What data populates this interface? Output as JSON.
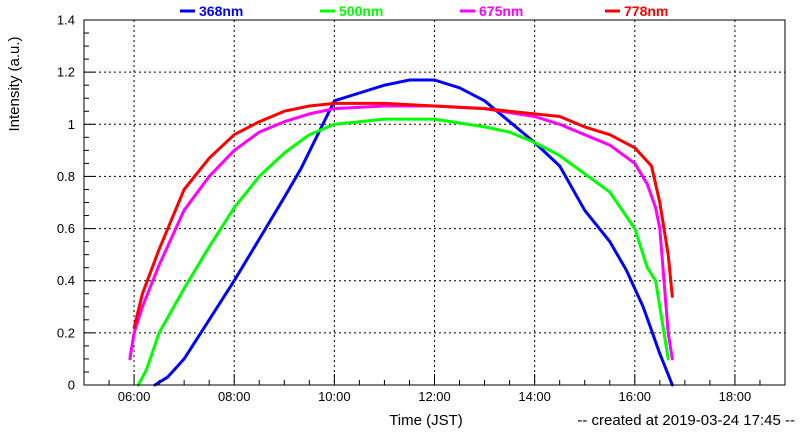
{
  "chart_data": {
    "type": "line",
    "title": "",
    "xlabel": "Time (JST)",
    "ylabel": "Intensity (a.u.)",
    "xlim": [
      "05:00",
      "19:00"
    ],
    "ylim": [
      0,
      1.4
    ],
    "xticks": [
      "06:00",
      "08:00",
      "10:00",
      "12:00",
      "14:00",
      "16:00",
      "18:00"
    ],
    "yticks": [
      "0",
      "0.2",
      "0.4",
      "0.6",
      "0.8",
      "1",
      "1.2",
      "1.4"
    ],
    "grid": true,
    "legend": "top",
    "footnote": "-- created at 2019-03-24 17:45 --",
    "series": [
      {
        "name": "368nm",
        "color": "#0000ff",
        "points": [
          [
            "06:25",
            0.0
          ],
          [
            "06:40",
            0.03
          ],
          [
            "07:00",
            0.1
          ],
          [
            "07:30",
            0.25
          ],
          [
            "08:00",
            0.4
          ],
          [
            "08:30",
            0.56
          ],
          [
            "09:00",
            0.72
          ],
          [
            "09:20",
            0.83
          ],
          [
            "09:40",
            0.96
          ],
          [
            "10:00",
            1.09
          ],
          [
            "10:30",
            1.12
          ],
          [
            "11:00",
            1.15
          ],
          [
            "11:30",
            1.17
          ],
          [
            "12:00",
            1.17
          ],
          [
            "12:30",
            1.14
          ],
          [
            "13:00",
            1.09
          ],
          [
            "13:30",
            1.01
          ],
          [
            "14:00",
            0.93
          ],
          [
            "14:30",
            0.84
          ],
          [
            "15:00",
            0.67
          ],
          [
            "15:30",
            0.55
          ],
          [
            "15:50",
            0.44
          ],
          [
            "16:10",
            0.3
          ],
          [
            "16:20",
            0.21
          ],
          [
            "16:30",
            0.12
          ],
          [
            "16:40",
            0.04
          ],
          [
            "16:45",
            0.0
          ]
        ]
      },
      {
        "name": "500nm",
        "color": "#00ff00",
        "points": [
          [
            "06:05",
            0.0
          ],
          [
            "06:15",
            0.06
          ],
          [
            "06:30",
            0.2
          ],
          [
            "07:00",
            0.37
          ],
          [
            "07:30",
            0.53
          ],
          [
            "08:00",
            0.68
          ],
          [
            "08:30",
            0.8
          ],
          [
            "09:00",
            0.89
          ],
          [
            "09:30",
            0.96
          ],
          [
            "10:00",
            1.0
          ],
          [
            "10:30",
            1.01
          ],
          [
            "11:00",
            1.02
          ],
          [
            "12:00",
            1.02
          ],
          [
            "13:00",
            0.99
          ],
          [
            "13:30",
            0.97
          ],
          [
            "14:00",
            0.93
          ],
          [
            "14:30",
            0.88
          ],
          [
            "15:00",
            0.81
          ],
          [
            "15:30",
            0.74
          ],
          [
            "16:00",
            0.6
          ],
          [
            "16:15",
            0.45
          ],
          [
            "16:25",
            0.4
          ],
          [
            "16:30",
            0.3
          ],
          [
            "16:35",
            0.2
          ],
          [
            "16:40",
            0.1
          ]
        ]
      },
      {
        "name": "675nm",
        "color": "#ff00ff",
        "points": [
          [
            "05:55",
            0.1
          ],
          [
            "06:00",
            0.2
          ],
          [
            "06:10",
            0.3
          ],
          [
            "06:30",
            0.46
          ],
          [
            "07:00",
            0.67
          ],
          [
            "07:30",
            0.8
          ],
          [
            "08:00",
            0.9
          ],
          [
            "08:30",
            0.97
          ],
          [
            "09:00",
            1.01
          ],
          [
            "09:30",
            1.04
          ],
          [
            "10:00",
            1.06
          ],
          [
            "11:00",
            1.07
          ],
          [
            "12:00",
            1.07
          ],
          [
            "13:00",
            1.06
          ],
          [
            "14:00",
            1.03
          ],
          [
            "14:30",
            1.0
          ],
          [
            "15:00",
            0.96
          ],
          [
            "15:30",
            0.92
          ],
          [
            "16:00",
            0.85
          ],
          [
            "16:15",
            0.77
          ],
          [
            "16:25",
            0.68
          ],
          [
            "16:30",
            0.6
          ],
          [
            "16:35",
            0.4
          ],
          [
            "16:40",
            0.2
          ],
          [
            "16:45",
            0.1
          ]
        ]
      },
      {
        "name": "778nm",
        "color": "#ff0000",
        "points": [
          [
            "06:00",
            0.22
          ],
          [
            "06:10",
            0.35
          ],
          [
            "06:30",
            0.52
          ],
          [
            "07:00",
            0.75
          ],
          [
            "07:30",
            0.87
          ],
          [
            "08:00",
            0.96
          ],
          [
            "08:30",
            1.01
          ],
          [
            "09:00",
            1.05
          ],
          [
            "09:30",
            1.07
          ],
          [
            "10:00",
            1.08
          ],
          [
            "11:00",
            1.08
          ],
          [
            "12:00",
            1.07
          ],
          [
            "13:00",
            1.06
          ],
          [
            "14:00",
            1.04
          ],
          [
            "14:30",
            1.03
          ],
          [
            "15:00",
            0.99
          ],
          [
            "15:30",
            0.96
          ],
          [
            "16:00",
            0.91
          ],
          [
            "16:20",
            0.84
          ],
          [
            "16:30",
            0.7
          ],
          [
            "16:40",
            0.5
          ],
          [
            "16:45",
            0.34
          ]
        ]
      }
    ]
  }
}
